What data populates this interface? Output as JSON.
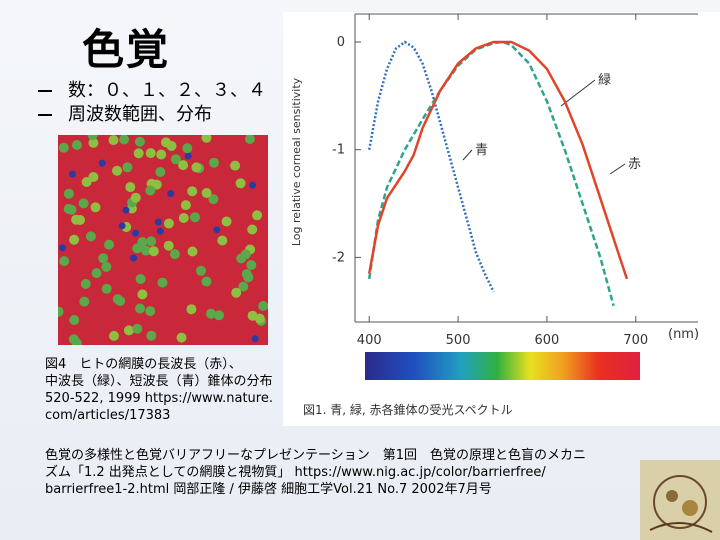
{
  "slide": {
    "title": "色覚",
    "bullets": [
      "数：０、１、２、３、４",
      "周波数範囲、分布"
    ],
    "retina_caption": [
      "図4　ヒトの網膜の長波長（赤）、",
      "中波長（緑）、短波長（青）錐体の分布",
      "520-522, 1999 https://www.nature.",
      "com/articles/17383"
    ],
    "reference": [
      "色覚の多様性と色覚バリアフリーなプレゼンテーション　第1回　色覚の原理と色盲のメカニ",
      "ズム「1.2 出発点としての網膜と視物質」 https://www.nig.ac.jp/color/barrierfree/",
      "barrierfree1-2.html 岡部正隆 / 伊藤啓 細胞工学Vol.21 No.7 2002年7月号"
    ]
  },
  "chart_data": {
    "type": "line",
    "y_label": "Log relative corneal sensitivity",
    "x_unit": "(nm)",
    "caption": "図1. 青, 緑, 赤各錐体の受光スペクトル",
    "xlim": [
      384,
      770
    ],
    "ylim": [
      -2.6,
      0.26
    ],
    "xticks": [
      400,
      500,
      600,
      700
    ],
    "yticks": [
      0,
      -1,
      -2
    ],
    "series": [
      {
        "name": "青",
        "color": "#2f6fc0",
        "dash": "dotted",
        "x": [
          400,
          410,
          420,
          430,
          440,
          450,
          460,
          470,
          480,
          490,
          500,
          510,
          520,
          530,
          540
        ],
        "values": [
          -1.0,
          -0.55,
          -0.25,
          -0.06,
          0,
          -0.05,
          -0.2,
          -0.45,
          -0.75,
          -1.05,
          -1.35,
          -1.65,
          -1.95,
          -2.15,
          -2.32
        ]
      },
      {
        "name": "緑",
        "color": "#2ca58d",
        "dash": "dashed",
        "x": [
          400,
          410,
          420,
          440,
          460,
          480,
          500,
          520,
          540,
          550,
          560,
          580,
          600,
          620,
          640,
          660,
          675
        ],
        "values": [
          -2.2,
          -1.65,
          -1.35,
          -1.0,
          -0.72,
          -0.45,
          -0.22,
          -0.07,
          -0.01,
          0,
          -0.03,
          -0.2,
          -0.55,
          -1.0,
          -1.5,
          -2.0,
          -2.45
        ]
      },
      {
        "name": "赤",
        "color": "#e0452b",
        "dash": "solid",
        "x": [
          400,
          410,
          420,
          440,
          450,
          460,
          480,
          500,
          520,
          540,
          560,
          580,
          600,
          620,
          640,
          660,
          680,
          690
        ],
        "values": [
          -2.15,
          -1.7,
          -1.45,
          -1.2,
          -1.05,
          -0.8,
          -0.45,
          -0.2,
          -0.06,
          0,
          0,
          -0.08,
          -0.25,
          -0.55,
          -0.95,
          -1.45,
          -1.95,
          -2.2
        ]
      }
    ]
  }
}
